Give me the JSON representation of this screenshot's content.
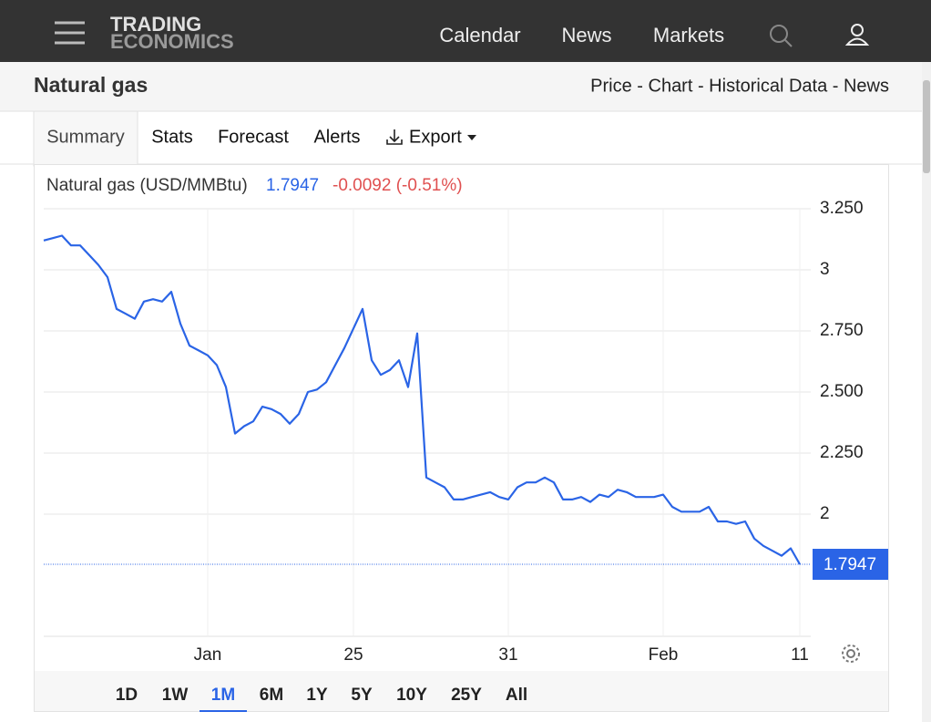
{
  "nav": {
    "logo": [
      "TRADING",
      "ECONOMICS"
    ],
    "links": [
      "Calendar",
      "News",
      "Markets"
    ]
  },
  "header": {
    "title": "Natural gas",
    "links": "Price - Chart - Historical Data - News"
  },
  "tabs": [
    "Summary",
    "Stats",
    "Forecast",
    "Alerts",
    "Export"
  ],
  "selected_tab": 0,
  "chart_data": {
    "type": "line",
    "title": "Natural gas (USD/MMBtu)",
    "last_value": 1.7947,
    "change": "-0.0092 (-0.51%)",
    "categories": [
      null,
      null,
      null,
      null,
      null,
      null,
      null,
      null,
      null,
      null,
      null,
      null,
      null,
      null,
      null,
      null,
      null,
      null,
      "Jan",
      null,
      null,
      null,
      null,
      null,
      null,
      null,
      null,
      null,
      null,
      null,
      null,
      null,
      null,
      null,
      "25",
      null,
      null,
      null,
      null,
      null,
      null,
      null,
      null,
      null,
      null,
      null,
      null,
      null,
      null,
      null,
      null,
      "31",
      null,
      null,
      null,
      null,
      null,
      null,
      null,
      null,
      null,
      null,
      null,
      null,
      null,
      null,
      null,
      null,
      "Feb",
      null,
      null,
      null,
      null,
      null,
      null,
      null,
      null,
      null,
      null,
      null,
      null,
      null,
      null,
      "11"
    ],
    "series": [
      {
        "color": "#2a64e6",
        "values": [
          3.12,
          3.13,
          3.14,
          3.1,
          3.1,
          3.06,
          3.02,
          2.97,
          2.84,
          2.82,
          2.8,
          2.87,
          2.88,
          2.87,
          2.91,
          2.78,
          2.69,
          2.67,
          2.65,
          2.61,
          2.52,
          2.33,
          2.36,
          2.38,
          2.44,
          2.43,
          2.41,
          2.37,
          2.41,
          2.5,
          2.51,
          2.54,
          2.61,
          2.68,
          2.76,
          2.84,
          2.63,
          2.57,
          2.59,
          2.63,
          2.52,
          2.74,
          2.15,
          2.13,
          2.11,
          2.06,
          2.06,
          2.07,
          2.08,
          2.09,
          2.07,
          2.06,
          2.11,
          2.13,
          2.13,
          2.15,
          2.13,
          2.06,
          2.06,
          2.07,
          2.05,
          2.08,
          2.07,
          2.1,
          2.09,
          2.07,
          2.07,
          2.07,
          2.08,
          2.03,
          2.01,
          2.01,
          2.01,
          2.03,
          1.97,
          1.97,
          1.96,
          1.97,
          1.9,
          1.87,
          1.85,
          1.83,
          1.86,
          1.7947
        ]
      }
    ],
    "ylim": [
      1.5,
      3.25
    ],
    "yticks": [
      {
        "value": 3.25,
        "label": "3.250"
      },
      3,
      {
        "value": 2.75,
        "label": "2.750"
      },
      {
        "value": 2.5,
        "label": "2.500"
      },
      {
        "value": 2.25,
        "label": "2.250"
      },
      2
    ],
    "grid": true
  },
  "ranges": [
    "1D",
    "1W",
    "1M",
    "6M",
    "1Y",
    "5Y",
    "10Y",
    "25Y",
    "All"
  ],
  "selected_range": 2
}
